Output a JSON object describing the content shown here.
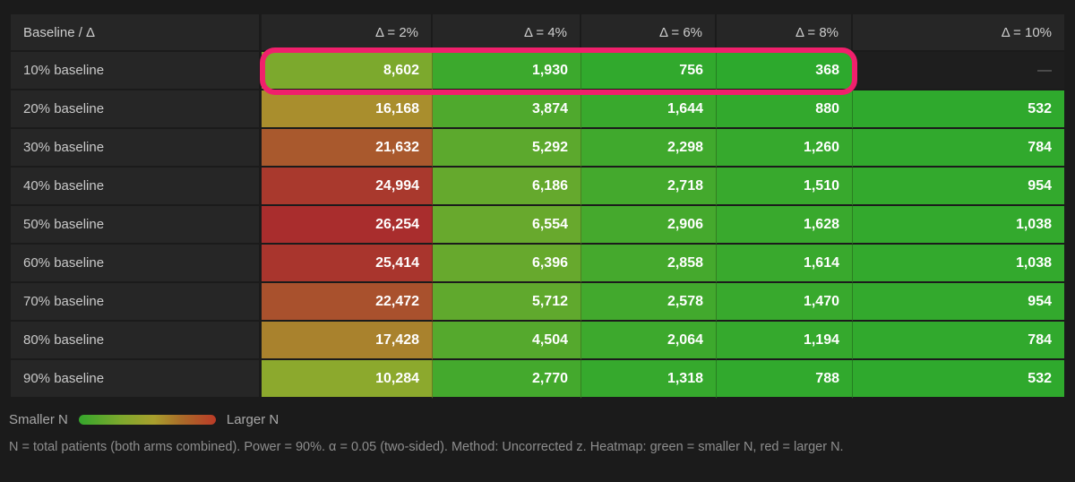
{
  "colors": {
    "page_bg": "#1b1b1b",
    "panel_bg": "#262626",
    "header_text": "#cdcdcd",
    "row_label_text": "#c9c9c9",
    "cell_text": "#ffffff",
    "empty_cell_bg": "#1e1e1e",
    "empty_dash_text": "#707070",
    "legend_text": "#a8a8a8",
    "footnote_text": "#8d8d8d",
    "highlight_ring": "#f0206c",
    "scale_green": "#35a62c",
    "scale_yellow": "#a99f2d",
    "scale_red": "#bb3b27"
  },
  "table": {
    "corner_label": "Baseline / Δ",
    "col_headers": [
      "Δ = 2%",
      "Δ = 4%",
      "Δ = 6%",
      "Δ = 8%",
      "Δ = 10%"
    ],
    "row_labels": [
      "10% baseline",
      "20% baseline",
      "30% baseline",
      "40% baseline",
      "50% baseline",
      "60% baseline",
      "70% baseline",
      "80% baseline",
      "90% baseline"
    ],
    "empty_marker": "—"
  },
  "chart_data": {
    "type": "heatmap",
    "x_labels": [
      "Δ = 2%",
      "Δ = 4%",
      "Δ = 6%",
      "Δ = 8%",
      "Δ = 10%"
    ],
    "y_labels": [
      "10% baseline",
      "20% baseline",
      "30% baseline",
      "40% baseline",
      "50% baseline",
      "60% baseline",
      "70% baseline",
      "80% baseline",
      "90% baseline"
    ],
    "values": [
      [
        8602,
        1930,
        756,
        368,
        null
      ],
      [
        16168,
        3874,
        1644,
        880,
        532
      ],
      [
        21632,
        5292,
        2298,
        1260,
        784
      ],
      [
        24994,
        6186,
        2718,
        1510,
        954
      ],
      [
        26254,
        6554,
        2906,
        1628,
        1038
      ],
      [
        25414,
        6396,
        2858,
        1614,
        1038
      ],
      [
        22472,
        5712,
        2578,
        1470,
        954
      ],
      [
        17428,
        4504,
        2064,
        1194,
        784
      ],
      [
        10284,
        2770,
        1318,
        788,
        532
      ]
    ],
    "value_format": "thousands-comma",
    "color_scale": {
      "min": 368,
      "max": 26254,
      "hue_green": 120,
      "hue_red": 0,
      "saturation_pct": 58,
      "lightness_pct": 42,
      "legend_min_label": "Smaller N",
      "legend_max_label": "Larger N"
    }
  },
  "highlight": {
    "row_index": 0,
    "col_start": 0,
    "col_end": 3
  },
  "legend": {
    "smaller_label": "Smaller N",
    "larger_label": "Larger N"
  },
  "footer": {
    "note": "N = total patients (both arms combined). Power = 90%. α = 0.05 (two-sided). Method: Uncorrected z. Heatmap: green = smaller N, red = larger N."
  }
}
